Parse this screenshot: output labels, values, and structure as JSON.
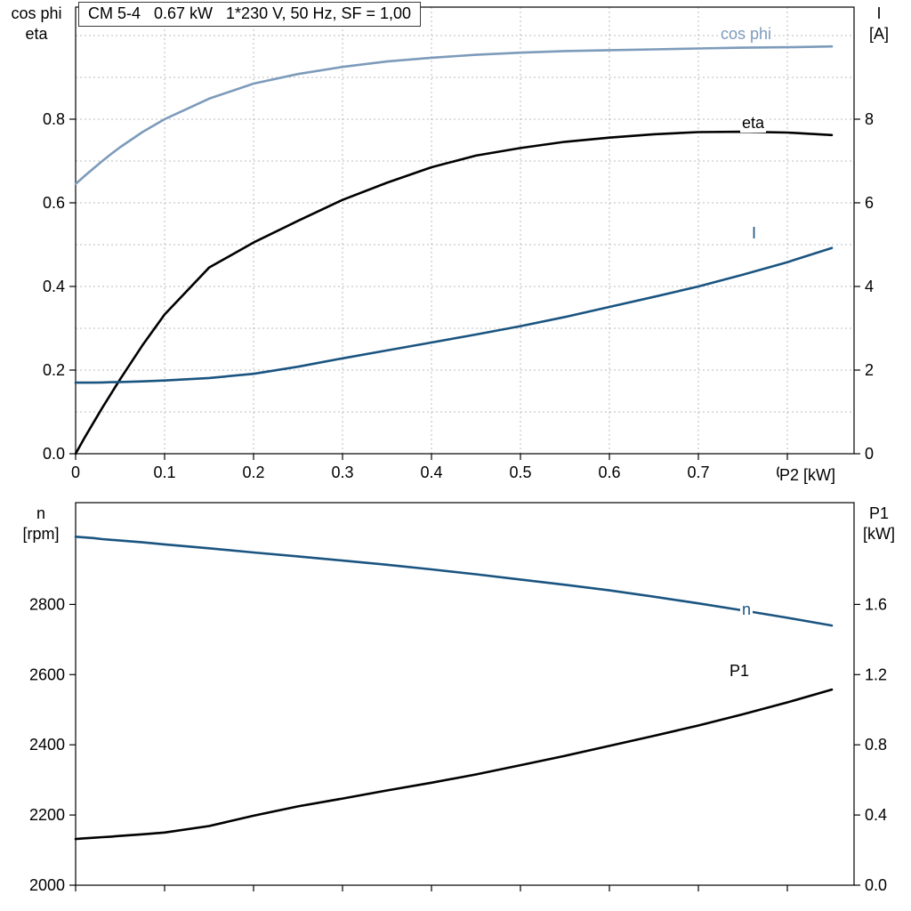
{
  "accent_colors": {
    "light_blue": "#7D9BBB",
    "dark_blue": "#1A5480",
    "black": "#000000",
    "grid": "#bbbbbb"
  },
  "chart_data": [
    {
      "type": "line",
      "title": "CM 5-4   0.67 kW   1*230 V, 50 Hz, SF = 1,00",
      "xlabel": "P2 [kW]",
      "xlim": [
        0,
        0.875
      ],
      "grid": true,
      "grid_color": "#bbbbbb",
      "x": [
        0,
        0.01,
        0.02,
        0.03,
        0.04,
        0.05,
        0.075,
        0.1,
        0.15,
        0.2,
        0.25,
        0.3,
        0.35,
        0.4,
        0.45,
        0.5,
        0.55,
        0.6,
        0.65,
        0.7,
        0.75,
        0.8,
        0.85
      ],
      "xticks": [
        0,
        0.1,
        0.2,
        0.3,
        0.4,
        0.5,
        0.6,
        0.7,
        0.8
      ],
      "xtick_labels": [
        "0",
        "0.1",
        "0.2",
        "0.3",
        "0.4",
        "0.5",
        "0.6",
        "0.7",
        "0.8"
      ],
      "grid_x_values": [
        0.1,
        0.2,
        0.3,
        0.4,
        0.5,
        0.6,
        0.7,
        0.8
      ],
      "grid_y_values": [
        0.1,
        0.2,
        0.3,
        0.4,
        0.5,
        0.6,
        0.7,
        0.8,
        0.9,
        1.0
      ],
      "left_axis": {
        "name_lines": [
          "cos phi",
          "eta"
        ],
        "lim": [
          0,
          1.068
        ],
        "tick_values": [
          0,
          0.2,
          0.4,
          0.6,
          0.8
        ],
        "tick_labels": [
          "0.0",
          "0.2",
          "0.4",
          "0.6",
          "0.8"
        ]
      },
      "right_axis": {
        "name_lines": [
          "I",
          "[A]"
        ],
        "lim": [
          0,
          10.68
        ],
        "tick_values": [
          0,
          2,
          4,
          6,
          8
        ],
        "tick_labels": [
          "0",
          "2",
          "4",
          "6",
          "8"
        ]
      },
      "series": [
        {
          "name": "cos phi",
          "axis": "left",
          "color": "#7D9BBB",
          "values": [
            0.645,
            0.664,
            0.682,
            0.7,
            0.717,
            0.733,
            0.769,
            0.8,
            0.849,
            0.885,
            0.908,
            0.925,
            0.938,
            0.947,
            0.954,
            0.959,
            0.963,
            0.965,
            0.967,
            0.969,
            0.971,
            0.972,
            0.974
          ]
        },
        {
          "name": "eta",
          "axis": "left",
          "color": "#000000",
          "values": [
            0,
            0.038,
            0.074,
            0.11,
            0.144,
            0.178,
            0.259,
            0.333,
            0.445,
            0.505,
            0.557,
            0.607,
            0.648,
            0.685,
            0.713,
            0.731,
            0.746,
            0.756,
            0.764,
            0.769,
            0.77,
            0.768,
            0.762
          ]
        },
        {
          "name": "I",
          "axis": "right",
          "color": "#1A5480",
          "values": [
            1.7,
            1.7,
            1.7,
            1.705,
            1.71,
            1.715,
            1.73,
            1.75,
            1.81,
            1.91,
            2.08,
            2.28,
            2.47,
            2.66,
            2.85,
            3.05,
            3.27,
            3.51,
            3.75,
            4.0,
            4.28,
            4.58,
            4.92
          ]
        }
      ]
    },
    {
      "type": "line",
      "title": "",
      "xlabel": "",
      "xlim": [
        0,
        0.875
      ],
      "grid": false,
      "grid_color": "#bbbbbb",
      "x": [
        0,
        0.01,
        0.02,
        0.03,
        0.04,
        0.05,
        0.075,
        0.1,
        0.15,
        0.2,
        0.25,
        0.3,
        0.35,
        0.4,
        0.45,
        0.5,
        0.55,
        0.6,
        0.65,
        0.7,
        0.75,
        0.8,
        0.85
      ],
      "xticks": [
        0,
        0.1,
        0.2,
        0.3,
        0.4,
        0.5,
        0.6,
        0.7,
        0.8
      ],
      "xtick_labels": [],
      "grid_x_values": [],
      "grid_y_values": [],
      "left_axis": {
        "name_lines": [
          "n",
          "[rpm]"
        ],
        "lim": [
          2000,
          3090
        ],
        "tick_values": [
          2000,
          2200,
          2400,
          2600,
          2800
        ],
        "tick_labels": [
          "2000",
          "2200",
          "2400",
          "2600",
          "2800"
        ]
      },
      "right_axis": {
        "name_lines": [
          "P1",
          "[kW]"
        ],
        "lim": [
          0,
          2.18
        ],
        "tick_values": [
          0,
          0.4,
          0.8,
          1.2,
          1.6
        ],
        "tick_labels": [
          "0.0",
          "0.4",
          "0.8",
          "1.2",
          "1.6"
        ]
      },
      "series": [
        {
          "name": "n",
          "axis": "left",
          "color": "#1A5480",
          "values": [
            2993,
            2991,
            2989,
            2986,
            2984,
            2982,
            2977,
            2971,
            2960,
            2948,
            2937,
            2925,
            2913,
            2900,
            2886,
            2871,
            2856,
            2840,
            2822,
            2803,
            2783,
            2762,
            2740
          ]
        },
        {
          "name": "P1",
          "axis": "right",
          "color": "#000000",
          "values": [
            0.263,
            0.267,
            0.27,
            0.274,
            0.277,
            0.281,
            0.29,
            0.3,
            0.337,
            0.396,
            0.449,
            0.494,
            0.54,
            0.584,
            0.631,
            0.684,
            0.737,
            0.794,
            0.851,
            0.91,
            0.974,
            1.042,
            1.115
          ]
        }
      ]
    }
  ]
}
